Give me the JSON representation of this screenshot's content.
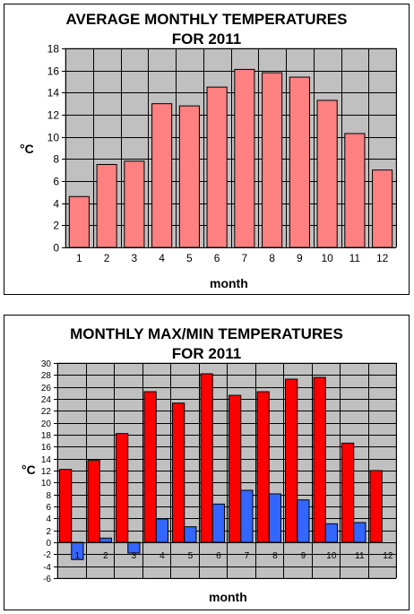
{
  "chart_data": [
    {
      "type": "bar",
      "title": [
        "AVERAGE MONTHLY TEMPERATURES",
        "FOR 2011"
      ],
      "xlabel": "month",
      "ylabel": "°C",
      "categories": [
        "1",
        "2",
        "3",
        "4",
        "5",
        "6",
        "7",
        "8",
        "9",
        "10",
        "11",
        "12"
      ],
      "series": [
        {
          "values": [
            4.6,
            7.5,
            7.8,
            13.0,
            12.8,
            14.5,
            16.1,
            15.8,
            15.4,
            13.3,
            10.3,
            7.0
          ],
          "color": "#ff8080"
        }
      ],
      "ylim": [
        0,
        18
      ],
      "yticks": [
        "0",
        "2",
        "4",
        "6",
        "8",
        "10",
        "12",
        "14",
        "16",
        "18"
      ],
      "grid": true,
      "plot_background": "#c0c0c0"
    },
    {
      "type": "bar",
      "title": [
        "MONTHLY MAX/MIN TEMPERATURES",
        "FOR 2011"
      ],
      "xlabel": "month",
      "ylabel": "°C",
      "categories": [
        "1",
        "2",
        "3",
        "4",
        "5",
        "6",
        "7",
        "8",
        "9",
        "10",
        "11",
        "12"
      ],
      "series": [
        {
          "values": [
            12.2,
            13.7,
            18.2,
            25.2,
            23.3,
            28.2,
            24.6,
            25.2,
            27.3,
            27.6,
            16.6,
            12.0
          ],
          "color": "#ff0000"
        },
        {
          "values": [
            -2.9,
            0.7,
            -1.8,
            3.9,
            2.6,
            6.4,
            8.7,
            8.1,
            7.1,
            3.1,
            3.3,
            0
          ],
          "color": "#3366ff"
        }
      ],
      "ylim": [
        -6,
        30
      ],
      "yticks": [
        "-6",
        "-4",
        "-2",
        "0",
        "2",
        "4",
        "6",
        "8",
        "10",
        "12",
        "14",
        "16",
        "18",
        "20",
        "22",
        "24",
        "26",
        "28",
        "30"
      ],
      "grid": true,
      "plot_background": "#c0c0c0"
    }
  ]
}
